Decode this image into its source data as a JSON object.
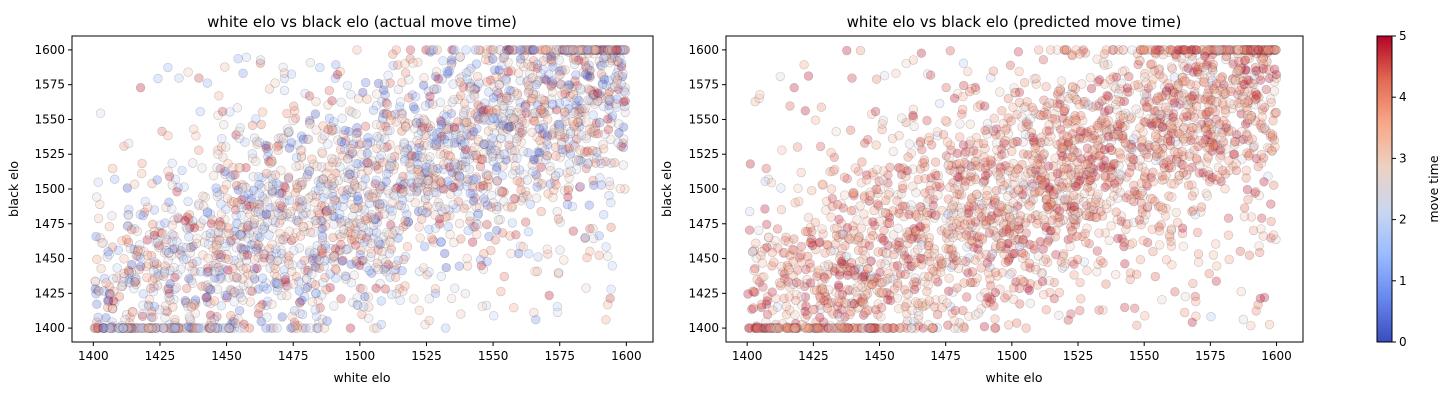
{
  "colors": {
    "colormap": [
      "#3b4cc0",
      "#6788ee",
      "#9abbff",
      "#c9d7f0",
      "#edd1c2",
      "#f7a889",
      "#e26952",
      "#b40426"
    ],
    "marker_edge": "#2b1020"
  },
  "chart_data": [
    {
      "type": "scatter",
      "title": "white elo vs black elo (actual move time)",
      "xlabel": "white elo",
      "ylabel": "black elo",
      "xlim": [
        1392,
        1610
      ],
      "ylim": [
        1390,
        1610
      ],
      "x_ticks": [
        1400,
        1425,
        1450,
        1475,
        1500,
        1525,
        1550,
        1575,
        1600
      ],
      "y_ticks": [
        1400,
        1425,
        1450,
        1475,
        1500,
        1525,
        1550,
        1575,
        1600
      ],
      "grid": false,
      "color_encoding": "move time",
      "point_count_approx": 2600,
      "seed": 11
    },
    {
      "type": "scatter",
      "title": "white elo vs black elo (predicted move time)",
      "xlabel": "white elo",
      "ylabel": "black elo",
      "xlim": [
        1392,
        1610
      ],
      "ylim": [
        1390,
        1610
      ],
      "x_ticks": [
        1400,
        1425,
        1450,
        1475,
        1500,
        1525,
        1550,
        1575,
        1600
      ],
      "y_ticks": [
        1400,
        1425,
        1450,
        1475,
        1500,
        1525,
        1550,
        1575,
        1600
      ],
      "grid": false,
      "color_encoding": "move time",
      "point_count_approx": 2600,
      "seed": 11
    }
  ],
  "colorbar": {
    "label": "move time",
    "range": [
      0,
      5
    ],
    "ticks": [
      0,
      1,
      2,
      3,
      4,
      5
    ]
  }
}
